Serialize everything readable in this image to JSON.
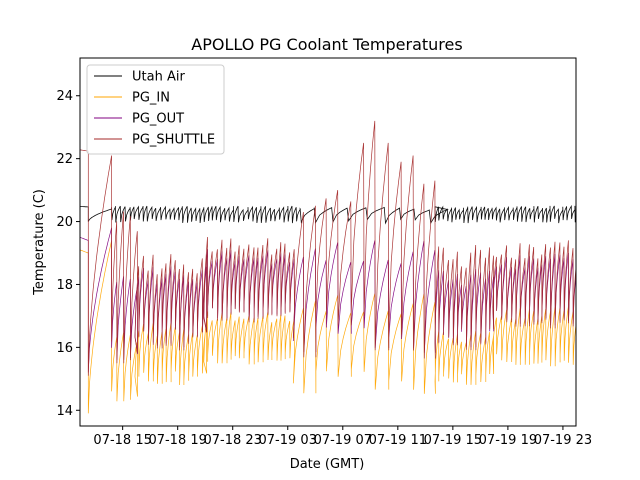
{
  "chart_data": {
    "type": "line",
    "title": "APOLLO PG Coolant Temperatures",
    "xlabel": "Date (GMT)",
    "ylabel": "Temperature (C)",
    "x_unit": "hours since 07-18 11:55 GMT",
    "xlim": [
      0,
      36.05
    ],
    "ylim": [
      13.5,
      25.2
    ],
    "grid": false,
    "legend_position": "top-left",
    "x_ticks": [
      {
        "t": 3.1,
        "label": "07-18 15"
      },
      {
        "t": 7.1,
        "label": "07-18 19"
      },
      {
        "t": 11.1,
        "label": "07-18 23"
      },
      {
        "t": 15.1,
        "label": "07-19 03"
      },
      {
        "t": 19.1,
        "label": "07-19 07"
      },
      {
        "t": 23.1,
        "label": "07-19 11"
      },
      {
        "t": 27.1,
        "label": "07-19 15"
      },
      {
        "t": 31.1,
        "label": "07-19 19"
      },
      {
        "t": 35.1,
        "label": "07-19 23"
      }
    ],
    "y_ticks": [
      14,
      16,
      18,
      20,
      22,
      24
    ],
    "series": [
      {
        "name": "Utah Air",
        "color": "#000000",
        "style": "sawtooth",
        "segments": [
          {
            "t0": 0.0,
            "t1": 0.6,
            "period": 0,
            "low": 20.45,
            "high": 20.48
          },
          {
            "t0": 0.6,
            "t1": 2.3,
            "period": 0,
            "low": 20.0,
            "high": 20.4
          },
          {
            "t0": 2.3,
            "t1": 16.0,
            "period": 0.32,
            "low": 19.95,
            "high": 20.5
          },
          {
            "t0": 16.0,
            "t1": 25.8,
            "period": 1.2,
            "low": 19.95,
            "high": 20.45
          },
          {
            "t0": 25.8,
            "t1": 36.05,
            "period": 0.3,
            "low": 19.95,
            "high": 20.5
          }
        ]
      },
      {
        "name": "PG_IN",
        "color": "#ffa500",
        "style": "sawtooth",
        "segments": [
          {
            "t0": 0.0,
            "t1": 0.6,
            "period": 0,
            "low": 18.9,
            "high": 19.1
          },
          {
            "t0": 0.6,
            "t1": 2.3,
            "period": 0,
            "low": 13.9,
            "high": 19.4
          },
          {
            "t0": 2.3,
            "t1": 4.0,
            "period": 0.45,
            "low": 14.2,
            "high": 16.5
          },
          {
            "t0": 4.0,
            "t1": 9.0,
            "period": 0.33,
            "low": 14.8,
            "high": 16.8
          },
          {
            "t0": 9.0,
            "t1": 15.5,
            "period": 0.33,
            "low": 15.4,
            "high": 17.2
          },
          {
            "t0": 15.5,
            "t1": 25.8,
            "period": 0.9,
            "low": 14.5,
            "high": 17.8
          },
          {
            "t0": 25.8,
            "t1": 30.0,
            "period": 0.33,
            "low": 14.8,
            "high": 16.6
          },
          {
            "t0": 30.0,
            "t1": 36.05,
            "period": 0.33,
            "low": 15.4,
            "high": 17.3
          }
        ]
      },
      {
        "name": "PG_OUT",
        "color": "#800080",
        "style": "sawtooth",
        "segments": [
          {
            "t0": 0.0,
            "t1": 0.6,
            "period": 0,
            "low": 19.3,
            "high": 19.5
          },
          {
            "t0": 0.6,
            "t1": 2.3,
            "period": 0,
            "low": 15.2,
            "high": 19.8
          },
          {
            "t0": 2.3,
            "t1": 4.0,
            "period": 0.45,
            "low": 15.5,
            "high": 18.3
          },
          {
            "t0": 4.0,
            "t1": 9.0,
            "period": 0.33,
            "low": 16.0,
            "high": 18.6
          },
          {
            "t0": 9.0,
            "t1": 15.5,
            "period": 0.33,
            "low": 16.8,
            "high": 19.2
          },
          {
            "t0": 15.5,
            "t1": 25.8,
            "period": 0.9,
            "low": 15.8,
            "high": 19.5
          },
          {
            "t0": 25.8,
            "t1": 30.0,
            "period": 0.33,
            "low": 16.0,
            "high": 18.6
          },
          {
            "t0": 30.0,
            "t1": 36.05,
            "period": 0.33,
            "low": 16.7,
            "high": 19.0
          }
        ]
      },
      {
        "name": "PG_SHUTTLE",
        "color": "#a52a2a",
        "style": "sawtooth",
        "segments": [
          {
            "t0": 0.0,
            "t1": 0.6,
            "period": 0,
            "low": 22.2,
            "high": 22.28
          },
          {
            "t0": 0.6,
            "t1": 2.3,
            "period": 0,
            "low": 15.1,
            "high": 22.1
          },
          {
            "t0": 2.3,
            "t1": 4.0,
            "period": 0.45,
            "low": 15.3,
            "high": 20.4
          },
          {
            "t0": 4.0,
            "t1": 9.0,
            "period": 0.33,
            "low": 15.9,
            "high": 19.0
          },
          {
            "t0": 9.0,
            "t1": 15.5,
            "period": 0.33,
            "low": 16.7,
            "high": 19.6
          },
          {
            "t0": 15.5,
            "t1": 25.8,
            "period": 0.9,
            "low": 15.6,
            "high": 22.0
          },
          {
            "t0": 25.8,
            "t1": 30.0,
            "period": 0.33,
            "low": 15.9,
            "high": 19.4
          },
          {
            "t0": 30.0,
            "t1": 36.05,
            "period": 0.33,
            "low": 16.6,
            "high": 19.4
          }
        ],
        "annotated_peaks": [
          {
            "t": 16.6,
            "value": 20.3
          },
          {
            "t": 17.5,
            "value": 20.5
          },
          {
            "t": 18.6,
            "value": 21.0
          },
          {
            "t": 19.2,
            "value": 21.2
          },
          {
            "t": 20.2,
            "value": 22.5
          },
          {
            "t": 21.3,
            "value": 23.2
          },
          {
            "t": 22.3,
            "value": 22.5
          },
          {
            "t": 23.2,
            "value": 21.9
          },
          {
            "t": 24.5,
            "value": 22.1
          },
          {
            "t": 25.2,
            "value": 21.2
          }
        ]
      }
    ]
  }
}
